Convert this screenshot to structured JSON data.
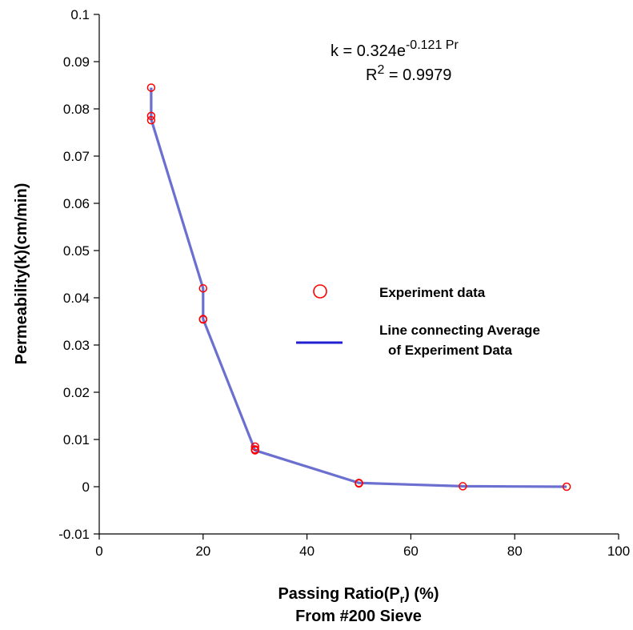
{
  "chart_data": {
    "type": "line",
    "xlabel_main": "Passing Ratio(P",
    "xlabel_sub": "r",
    "xlabel_tail": ") (%)",
    "xlabel_line2": "From #200 Sieve",
    "ylabel": "Permeability(k)(cm/min)",
    "xlim": [
      0,
      100
    ],
    "ylim": [
      -0.01,
      0.1
    ],
    "x_ticks": [
      "0",
      "20",
      "40",
      "60",
      "80",
      "100"
    ],
    "y_ticks": [
      "-0.01",
      "0",
      "0.01",
      "0.02",
      "0.03",
      "0.04",
      "0.05",
      "0.06",
      "0.07",
      "0.08",
      "0.09",
      "0.1"
    ],
    "equation": {
      "lhs": "k = 0.324e",
      "exponent": "-0.121 Pr",
      "r2_label": "R",
      "r2_sup": "2",
      "r2_value": " = 0.9979"
    },
    "series": [
      {
        "name": "Experiment data",
        "kind": "scatter",
        "color": "#ff0000",
        "points": [
          [
            10,
            0.0845
          ],
          [
            10,
            0.0785
          ],
          [
            10,
            0.0776
          ],
          [
            20,
            0.042
          ],
          [
            20,
            0.0355
          ],
          [
            20,
            0.0354
          ],
          [
            30,
            0.0085
          ],
          [
            30,
            0.0079
          ],
          [
            30,
            0.0077
          ],
          [
            50,
            0.0008
          ],
          [
            50,
            0.0007
          ],
          [
            70,
            0.0001
          ],
          [
            90,
            0.0
          ]
        ]
      },
      {
        "name": "Line connecting Average of Experiment Data",
        "kind": "line",
        "color": "#6a6fd0",
        "points": [
          [
            10,
            0.0845
          ],
          [
            10,
            0.0778
          ],
          [
            20,
            0.042
          ],
          [
            20,
            0.0355
          ],
          [
            30,
            0.0077
          ],
          [
            50,
            0.0008
          ],
          [
            70,
            0.0001
          ],
          [
            90,
            0.0
          ]
        ]
      }
    ],
    "legend": {
      "position": "center-right",
      "marker_label": "Experiment data",
      "line_label_1": "Line connecting Average",
      "line_label_2": "of Experiment Data",
      "line_color": "#2020d0"
    }
  }
}
